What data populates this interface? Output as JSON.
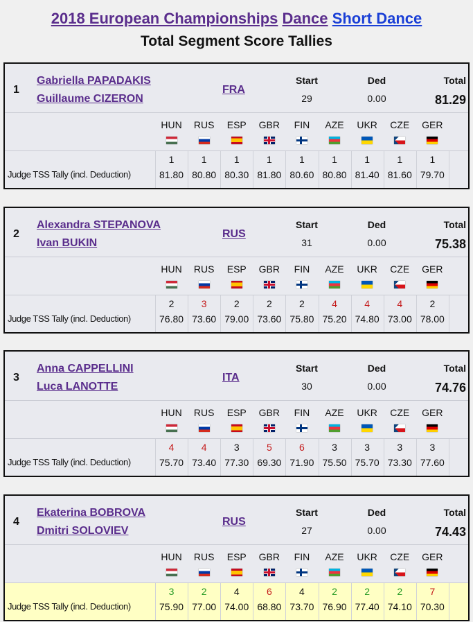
{
  "header": {
    "title": [
      "2018 European Championships",
      "Dance",
      "Short Dance"
    ],
    "subtitle": "Total Segment Score Tallies"
  },
  "start_label": "Start",
  "ded_label": "Ded",
  "total_label": "Total",
  "tally_label": "Judge TSS Tally (incl. Deduction)",
  "judges": [
    "HUN",
    "RUS",
    "ESP",
    "GBR",
    "FIN",
    "AZE",
    "UKR",
    "CZE",
    "GER"
  ],
  "entries": [
    {
      "rank": "1",
      "names": [
        "Gabriella PAPADAKIS",
        "Guillaume CIZERON"
      ],
      "nation": "FRA",
      "start": "29",
      "ded": "0.00",
      "total": "81.29",
      "ranks": [
        "1",
        "1",
        "1",
        "1",
        "1",
        "1",
        "1",
        "1",
        "1"
      ],
      "scores": [
        "81.80",
        "80.80",
        "80.30",
        "81.80",
        "80.60",
        "80.80",
        "81.40",
        "81.60",
        "79.70"
      ]
    },
    {
      "rank": "2",
      "names": [
        "Alexandra STEPANOVA",
        "Ivan BUKIN"
      ],
      "nation": "RUS",
      "start": "31",
      "ded": "0.00",
      "total": "75.38",
      "ranks": [
        "2",
        "3",
        "2",
        "2",
        "2",
        "4",
        "4",
        "4",
        "2"
      ],
      "scores": [
        "76.80",
        "73.60",
        "79.00",
        "73.60",
        "75.80",
        "75.20",
        "74.80",
        "73.00",
        "78.00"
      ]
    },
    {
      "rank": "3",
      "names": [
        "Anna CAPPELLINI",
        "Luca LANOTTE"
      ],
      "nation": "ITA",
      "start": "30",
      "ded": "0.00",
      "total": "74.76",
      "ranks": [
        "4",
        "4",
        "3",
        "5",
        "6",
        "3",
        "3",
        "3",
        "3"
      ],
      "scores": [
        "75.70",
        "73.40",
        "77.30",
        "69.30",
        "71.90",
        "75.50",
        "75.70",
        "73.30",
        "77.60"
      ]
    },
    {
      "rank": "4",
      "names": [
        "Ekaterina BOBROVA",
        "Dmitri SOLOVIEV"
      ],
      "nation": "RUS",
      "start": "27",
      "ded": "0.00",
      "total": "74.43",
      "ranks": [
        "3",
        "2",
        "4",
        "6",
        "4",
        "2",
        "2",
        "2",
        "7"
      ],
      "scores": [
        "75.90",
        "77.00",
        "74.00",
        "68.80",
        "73.70",
        "76.90",
        "77.40",
        "74.10",
        "70.30"
      ]
    }
  ]
}
